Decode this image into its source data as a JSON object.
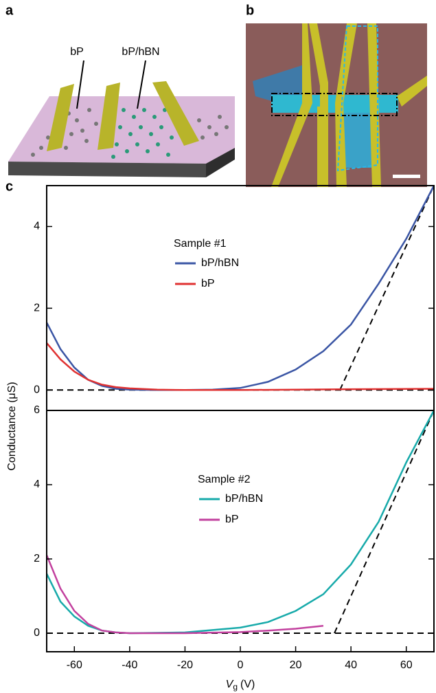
{
  "panel_labels": [
    "a",
    "b",
    "c"
  ],
  "panel_a": {
    "labels": [
      "bP",
      "bP/hBN"
    ]
  },
  "chart_data": [
    {
      "type": "line",
      "ylabel": "Conductance (μS)",
      "legend_title": "Sample #1",
      "xlim": [
        -70,
        70
      ],
      "ylim": [
        -0.5,
        5
      ],
      "yticks": [
        0,
        2,
        4
      ],
      "series": [
        {
          "name": "bP/hBN",
          "color": "#3a55a4",
          "x": [
            -70,
            -65,
            -60,
            -55,
            -50,
            -45,
            -40,
            -30,
            -20,
            -10,
            0,
            10,
            20,
            30,
            40,
            50,
            60,
            70
          ],
          "values": [
            1.65,
            1.0,
            0.55,
            0.25,
            0.1,
            0.03,
            0.01,
            0,
            0,
            0.01,
            0.05,
            0.2,
            0.5,
            0.95,
            1.6,
            2.6,
            3.7,
            5.0
          ]
        },
        {
          "name": "bP",
          "color": "#e03131",
          "x": [
            -70,
            -65,
            -60,
            -55,
            -50,
            -45,
            -40,
            -30,
            -20,
            0,
            20,
            40,
            70
          ],
          "values": [
            1.15,
            0.75,
            0.45,
            0.25,
            0.13,
            0.07,
            0.04,
            0.01,
            0,
            0,
            0.01,
            0.02,
            0.03
          ]
        }
      ],
      "dashed_lines": [
        {
          "color": "#000000",
          "x": [
            -70,
            70
          ],
          "values": [
            0,
            0
          ]
        },
        {
          "color": "#000000",
          "x": [
            36,
            70
          ],
          "values": [
            0,
            5
          ]
        }
      ]
    },
    {
      "type": "line",
      "legend_title": "Sample #2",
      "xlabel_symbol": "V",
      "xlabel_subscript": "g",
      "xlabel_unit": "(V)",
      "xlim": [
        -70,
        70
      ],
      "xticks": [
        -60,
        -40,
        -20,
        0,
        20,
        40,
        60
      ],
      "ylim": [
        -0.5,
        6
      ],
      "yticks": [
        0,
        2,
        4,
        6
      ],
      "series": [
        {
          "name": "bP/hBN",
          "color": "#17aaaa",
          "x": [
            -70,
            -65,
            -60,
            -55,
            -50,
            -45,
            -40,
            -20,
            0,
            10,
            20,
            30,
            40,
            50,
            60,
            70
          ],
          "values": [
            1.6,
            0.85,
            0.45,
            0.2,
            0.07,
            0.02,
            0,
            0.02,
            0.15,
            0.3,
            0.6,
            1.05,
            1.85,
            3.0,
            4.6,
            6.0
          ]
        },
        {
          "name": "bP",
          "color": "#c2409e",
          "x": [
            -70,
            -65,
            -60,
            -55,
            -50,
            -45,
            -40,
            -20,
            0,
            10,
            20,
            30
          ],
          "values": [
            2.1,
            1.2,
            0.6,
            0.25,
            0.07,
            0.02,
            0,
            0,
            0.03,
            0.07,
            0.12,
            0.2
          ]
        }
      ],
      "dashed_lines": [
        {
          "color": "#000000",
          "x": [
            -70,
            70
          ],
          "values": [
            0,
            0
          ]
        },
        {
          "color": "#000000",
          "x": [
            34,
            70
          ],
          "values": [
            0,
            6
          ]
        }
      ]
    }
  ]
}
